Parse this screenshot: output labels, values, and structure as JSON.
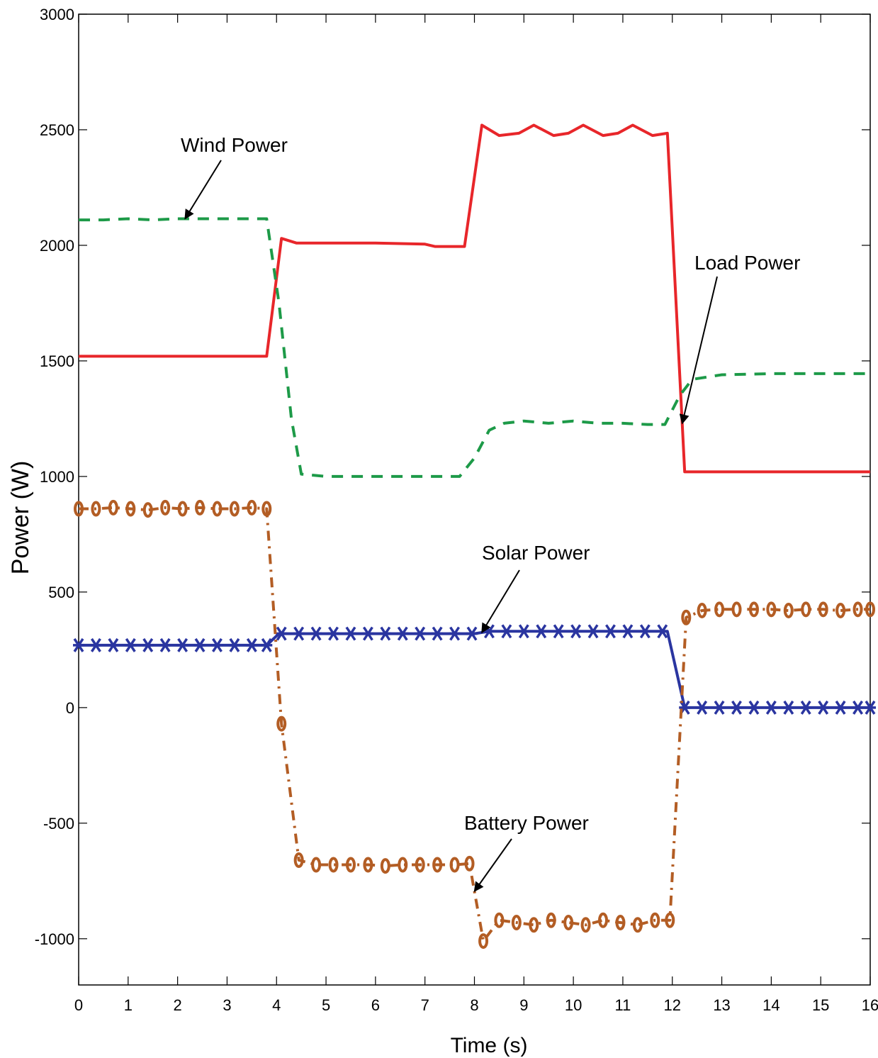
{
  "chart_data": {
    "type": "line",
    "title": "",
    "xlabel": "Time (s)",
    "ylabel": "Power (W)",
    "xlim": [
      0,
      16
    ],
    "ylim": [
      -1200,
      3000
    ],
    "xticks": [
      0,
      1,
      2,
      3,
      4,
      5,
      6,
      7,
      8,
      9,
      10,
      11,
      12,
      13,
      14,
      15,
      16
    ],
    "yticks": [
      -1000,
      -500,
      0,
      500,
      1000,
      1500,
      2000,
      2500,
      3000
    ],
    "grid": false,
    "series": [
      {
        "name": "Load Power",
        "color": "#e8262a",
        "style": "solid",
        "marker": "none",
        "x": [
          0,
          3.8,
          4.1,
          4.4,
          5,
          6,
          7,
          7.2,
          7.8,
          8.15,
          8.5,
          8.9,
          9.2,
          9.6,
          9.9,
          10.2,
          10.6,
          10.9,
          11.2,
          11.6,
          11.9,
          12.25,
          16
        ],
        "y": [
          1520,
          1520,
          2030,
          2010,
          2010,
          2010,
          2005,
          1995,
          1995,
          2520,
          2475,
          2485,
          2520,
          2475,
          2485,
          2520,
          2475,
          2485,
          2520,
          2475,
          2485,
          1020,
          1020
        ]
      },
      {
        "name": "Wind Power",
        "color": "#1d9a48",
        "style": "dashed",
        "marker": "none",
        "x": [
          0,
          0.5,
          1,
          1.5,
          2,
          3,
          3.8,
          4.05,
          4.3,
          4.5,
          5,
          6,
          7,
          7.7,
          8.0,
          8.3,
          8.6,
          9.0,
          9.5,
          10,
          10.5,
          11,
          11.5,
          11.85,
          12.15,
          12.4,
          13,
          14,
          16
        ],
        "y": [
          2110,
          2110,
          2115,
          2110,
          2115,
          2115,
          2115,
          1750,
          1250,
          1010,
          1000,
          1000,
          1000,
          1000,
          1080,
          1200,
          1230,
          1240,
          1230,
          1240,
          1230,
          1230,
          1225,
          1225,
          1350,
          1420,
          1440,
          1445,
          1445
        ]
      },
      {
        "name": "Solar Power",
        "color": "#2a35a0",
        "style": "solid",
        "marker": "x",
        "x": [
          0,
          3.8,
          4.05,
          8.0,
          8.3,
          11.9,
          12.25,
          16
        ],
        "y": [
          270,
          270,
          320,
          320,
          330,
          330,
          0,
          0
        ],
        "marker_x": [
          0,
          0.35,
          0.7,
          1.05,
          1.4,
          1.75,
          2.1,
          2.45,
          2.8,
          3.15,
          3.5,
          3.8,
          4.1,
          4.45,
          4.8,
          5.15,
          5.5,
          5.85,
          6.2,
          6.55,
          6.9,
          7.25,
          7.6,
          7.95,
          8.3,
          8.65,
          9.0,
          9.35,
          9.7,
          10.05,
          10.4,
          10.75,
          11.1,
          11.45,
          11.8,
          12.25,
          12.6,
          12.95,
          13.3,
          13.65,
          14.0,
          14.35,
          14.7,
          15.05,
          15.4,
          15.75,
          16
        ]
      },
      {
        "name": "Battery Power",
        "color": "#b35d24",
        "style": "dash-dot",
        "marker": "o",
        "x": [
          0,
          0.35,
          0.7,
          1.05,
          1.4,
          1.75,
          2.1,
          2.45,
          2.8,
          3.15,
          3.5,
          3.8,
          4.1,
          4.45,
          4.8,
          5.15,
          5.5,
          5.85,
          6.2,
          6.55,
          6.9,
          7.25,
          7.6,
          7.9,
          8.18,
          8.5,
          8.85,
          9.2,
          9.55,
          9.9,
          10.25,
          10.6,
          10.95,
          11.3,
          11.65,
          11.95,
          12.28,
          12.6,
          12.95,
          13.3,
          13.65,
          14.0,
          14.35,
          14.7,
          15.05,
          15.4,
          15.75,
          16
        ],
        "y": [
          860,
          860,
          865,
          860,
          855,
          865,
          860,
          865,
          860,
          860,
          865,
          860,
          -70,
          -660,
          -680,
          -680,
          -680,
          -680,
          -685,
          -680,
          -680,
          -680,
          -680,
          -675,
          -1010,
          -920,
          -930,
          -940,
          -920,
          -930,
          -940,
          -920,
          -930,
          -940,
          -920,
          -920,
          390,
          420,
          425,
          425,
          425,
          425,
          420,
          425,
          425,
          420,
          425,
          425
        ]
      }
    ],
    "annotations": [
      {
        "text": "Wind Power",
        "series": "Wind Power"
      },
      {
        "text": "Load Power",
        "series": "Load Power"
      },
      {
        "text": "Solar Power",
        "series": "Solar Power"
      },
      {
        "text": "Battery Power",
        "series": "Battery Power"
      }
    ]
  }
}
